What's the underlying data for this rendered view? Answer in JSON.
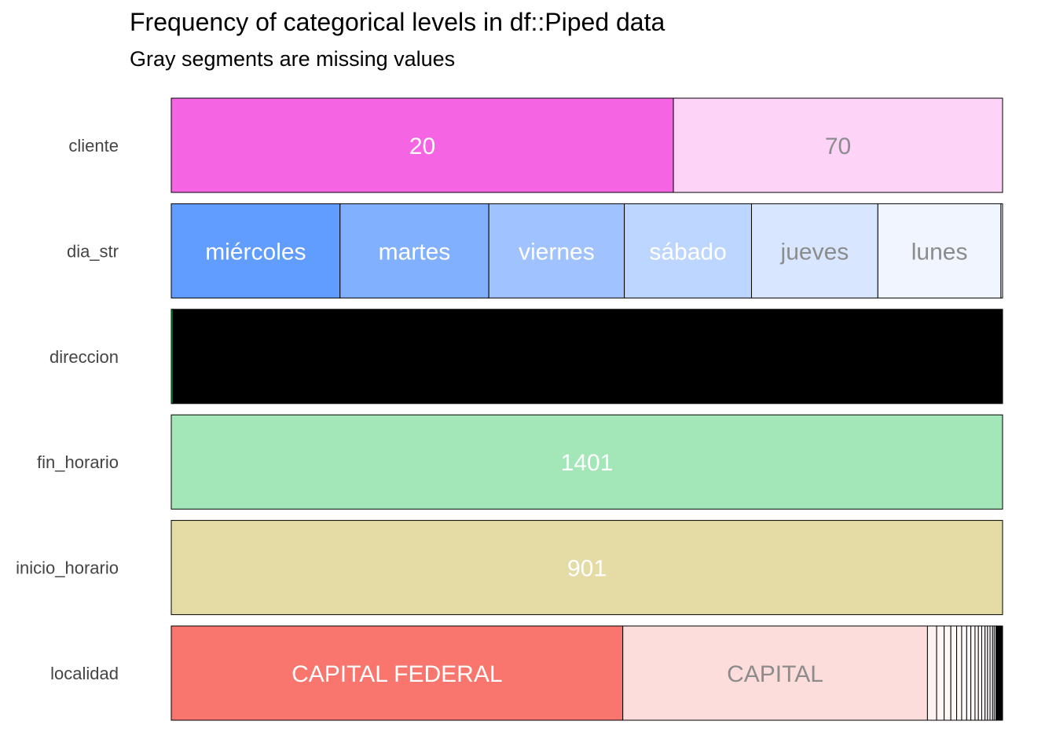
{
  "chart_data": {
    "type": "bar",
    "orientation": "horizontal",
    "stacked": true,
    "normalized": true,
    "title": "Frequency of categorical levels in df::Piped data",
    "subtitle": "Gray segments are missing values",
    "categories": [
      "cliente",
      "dia_str",
      "direccion",
      "fin_horario",
      "inicio_horario",
      "localidad"
    ],
    "rows": [
      {
        "name": "cliente",
        "segments": [
          {
            "label": "20",
            "fraction": 0.604,
            "color": "#F564E3",
            "text_color": "#ffffff"
          },
          {
            "label": "70",
            "fraction": 0.396,
            "color": "#FDD3F7",
            "text_color": "#8c8c8c"
          }
        ]
      },
      {
        "name": "dia_str",
        "segments": [
          {
            "label": "miércoles",
            "fraction": 0.203,
            "color": "#619CFF",
            "text_color": "#ffffff"
          },
          {
            "label": "martes",
            "fraction": 0.179,
            "color": "#81B0FF",
            "text_color": "#ffffff"
          },
          {
            "label": "viernes",
            "fraction": 0.163,
            "color": "#A0C3FF",
            "text_color": "#ffffff"
          },
          {
            "label": "sábado",
            "fraction": 0.153,
            "color": "#BDD6FF",
            "text_color": "#ffffff"
          },
          {
            "label": "jueves",
            "fraction": 0.152,
            "color": "#D8E6FF",
            "text_color": "#8c8c8c"
          },
          {
            "label": "lunes",
            "fraction": 0.148,
            "color": "#F0F5FF",
            "text_color": "#8c8c8c"
          },
          {
            "label": "",
            "fraction": 0.002,
            "color": "#ffffff",
            "text_color": "#8c8c8c"
          }
        ]
      },
      {
        "name": "direccion",
        "segments": [
          {
            "label": "",
            "fraction": 0.002,
            "color": "#00BA38",
            "text_color": "#ffffff"
          },
          {
            "label": "",
            "fraction": 0.998,
            "color": "#000000",
            "text_color": "#ffffff"
          }
        ]
      },
      {
        "name": "fin_horario",
        "segments": [
          {
            "label": "1401",
            "fraction": 1.0,
            "color": "#A3E6B8",
            "text_color": "#ffffff"
          }
        ]
      },
      {
        "name": "inicio_horario",
        "segments": [
          {
            "label": "901",
            "fraction": 1.0,
            "color": "#E4DBA5",
            "text_color": "#ffffff"
          }
        ]
      },
      {
        "name": "localidad",
        "segments": [
          {
            "label": "CAPITAL FEDERAL",
            "fraction": 0.541,
            "color": "#F8766D",
            "text_color": "#ffffff"
          },
          {
            "label": "CAPITAL",
            "fraction": 0.365,
            "color": "#FDDDDB",
            "text_color": "#8c8c8c"
          },
          {
            "label": "",
            "fraction": 0.011,
            "color": "#FEF2F1",
            "text_color": "#8c8c8c"
          },
          {
            "label": "",
            "fraction": 0.009,
            "color": "#FFF6F5",
            "text_color": "#8c8c8c"
          },
          {
            "label": "",
            "fraction": 0.008,
            "color": "#FFF7F6",
            "text_color": "#8c8c8c"
          },
          {
            "label": "",
            "fraction": 0.007,
            "color": "#FFF8F7",
            "text_color": "#8c8c8c"
          },
          {
            "label": "",
            "fraction": 0.006,
            "color": "#FFF9F8",
            "text_color": "#8c8c8c"
          },
          {
            "label": "",
            "fraction": 0.006,
            "color": "#FFFAF9",
            "text_color": "#8c8c8c"
          },
          {
            "label": "",
            "fraction": 0.005,
            "color": "#FFFAFA",
            "text_color": "#8c8c8c"
          },
          {
            "label": "",
            "fraction": 0.005,
            "color": "#FFFBFA",
            "text_color": "#8c8c8c"
          },
          {
            "label": "",
            "fraction": 0.004,
            "color": "#FFFBFB",
            "text_color": "#8c8c8c"
          },
          {
            "label": "",
            "fraction": 0.004,
            "color": "#FFFCFB",
            "text_color": "#8c8c8c"
          },
          {
            "label": "",
            "fraction": 0.004,
            "color": "#FFFCFC",
            "text_color": "#8c8c8c"
          },
          {
            "label": "",
            "fraction": 0.003,
            "color": "#FFFDFC",
            "text_color": "#8c8c8c"
          },
          {
            "label": "",
            "fraction": 0.003,
            "color": "#FFFDFD",
            "text_color": "#8c8c8c"
          },
          {
            "label": "",
            "fraction": 0.003,
            "color": "#FFFEFD",
            "text_color": "#8c8c8c"
          },
          {
            "label": "",
            "fraction": 0.002,
            "color": "#FFFEFE",
            "text_color": "#8c8c8c"
          },
          {
            "label": "",
            "fraction": 0.002,
            "color": "#FFFFFE",
            "text_color": "#8c8c8c"
          },
          {
            "label": "",
            "fraction": 0.008,
            "color": "#000000",
            "text_color": "#ffffff"
          }
        ]
      }
    ],
    "grid": false,
    "legend": "none"
  }
}
